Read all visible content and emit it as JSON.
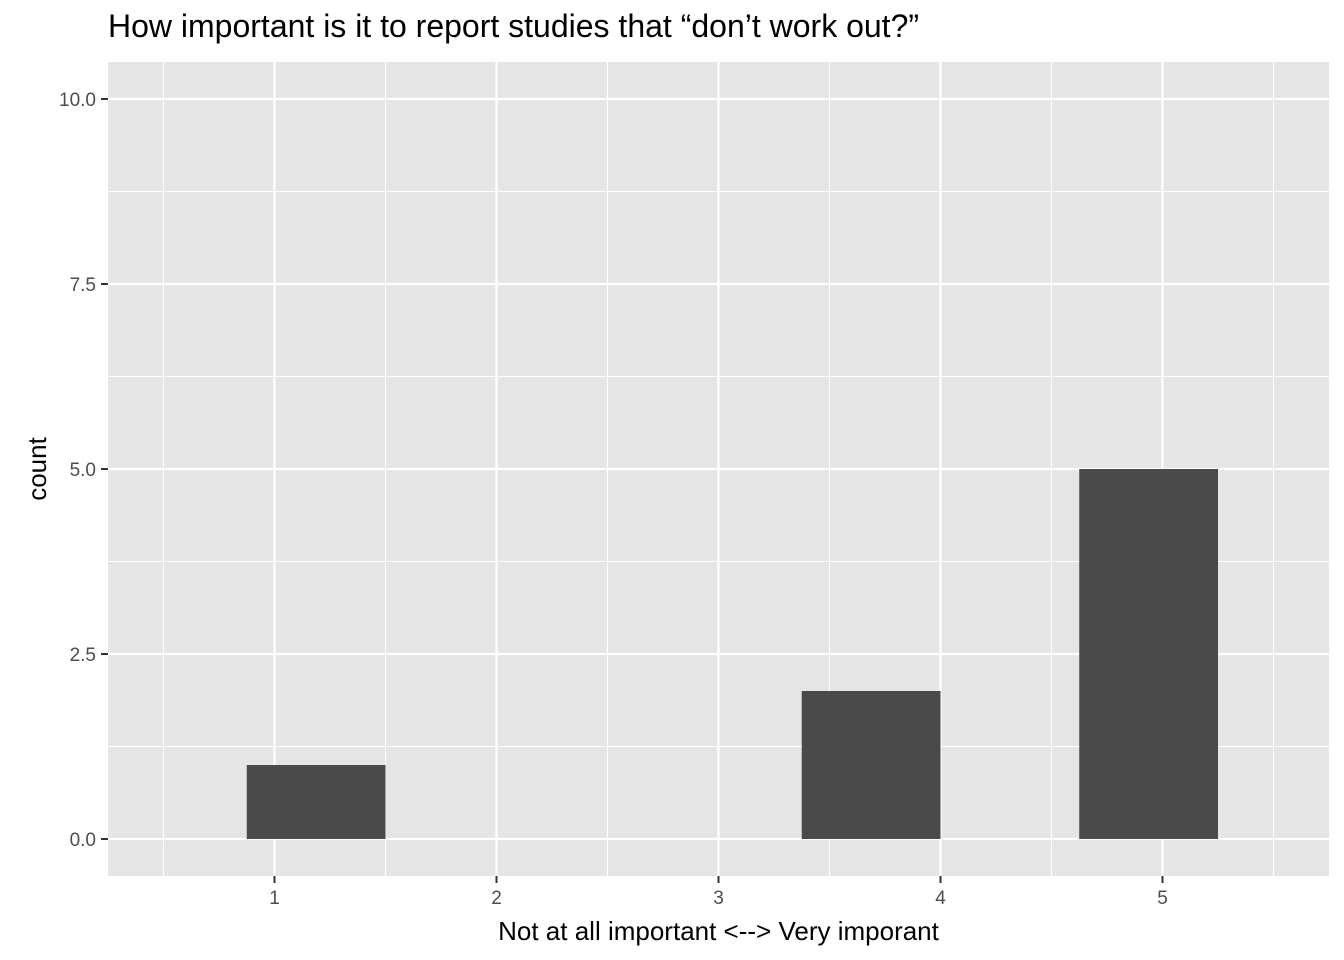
{
  "chart_data": {
    "type": "bar",
    "title": "How important is it to report studies that “don’t work out?”",
    "xlabel": "Not at all important <--> Very imporant",
    "ylabel": "count",
    "x_ticks": [
      "1",
      "2",
      "3",
      "4",
      "5"
    ],
    "y_ticks": [
      "0.0",
      "2.5",
      "5.0",
      "7.5",
      "10.0"
    ],
    "bars": [
      {
        "x_start": 0.875,
        "x_end": 1.5,
        "value": 1
      },
      {
        "x_start": 3.375,
        "x_end": 4.0,
        "value": 2
      },
      {
        "x_start": 4.625,
        "x_end": 5.25,
        "value": 5
      }
    ],
    "xlim": [
      0.25,
      5.75
    ],
    "ylim": [
      -0.5,
      10.5
    ],
    "grid": true,
    "colors": {
      "panel": "#e5e5e5",
      "grid": "#ffffff",
      "bar": "#4a4a4a"
    }
  }
}
